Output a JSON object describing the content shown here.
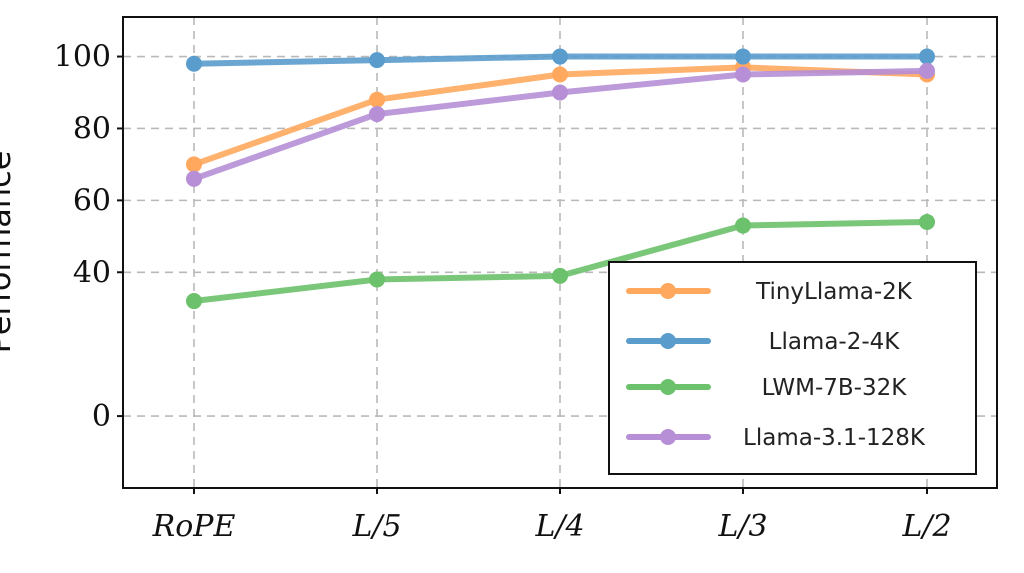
{
  "chart_data": {
    "type": "line",
    "title": "",
    "xlabel": "",
    "ylabel": "Performance",
    "categories": [
      "RoPE",
      "L/5",
      "L/4",
      "L/3",
      "L/2"
    ],
    "yticks": [
      0,
      40,
      60,
      80,
      100
    ],
    "ylim": [
      -20,
      111
    ],
    "grid": true,
    "legend_position": "bottom-right",
    "series": [
      {
        "name": "TinyLlama-2K",
        "color": "#ffa85e",
        "values": [
          70,
          88,
          95,
          97,
          95
        ]
      },
      {
        "name": "Llama-2-4K",
        "color": "#5a9ccc",
        "values": [
          98,
          99,
          100,
          100,
          100
        ]
      },
      {
        "name": "LWM-7B-32K",
        "color": "#6cc16c",
        "values": [
          32,
          38,
          39,
          53,
          54
        ]
      },
      {
        "name": "Llama-3.1-128K",
        "color": "#b68fd6",
        "values": [
          66,
          84,
          90,
          95,
          96
        ]
      }
    ]
  }
}
